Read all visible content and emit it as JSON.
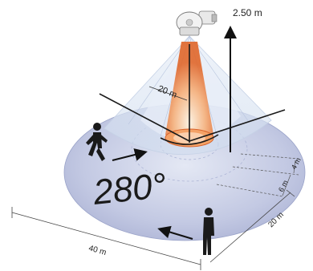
{
  "labels": {
    "height": "2.50 m",
    "radius": "20 m",
    "angle": "280°",
    "width": "40 m",
    "depth": "20 m",
    "band_outer": "6 m",
    "band_inner": "4 m"
  },
  "colors": {
    "floor": "#bcc3e0",
    "floor_edge": "#9aa3c9",
    "cone": "#dfe8f5",
    "hot_zone": "#f08a3c",
    "sensor": "#eeeeee",
    "ink": "#222222"
  },
  "icons": [
    "motion-sensor-icon",
    "walking-person-icon",
    "standing-person-icon"
  ]
}
